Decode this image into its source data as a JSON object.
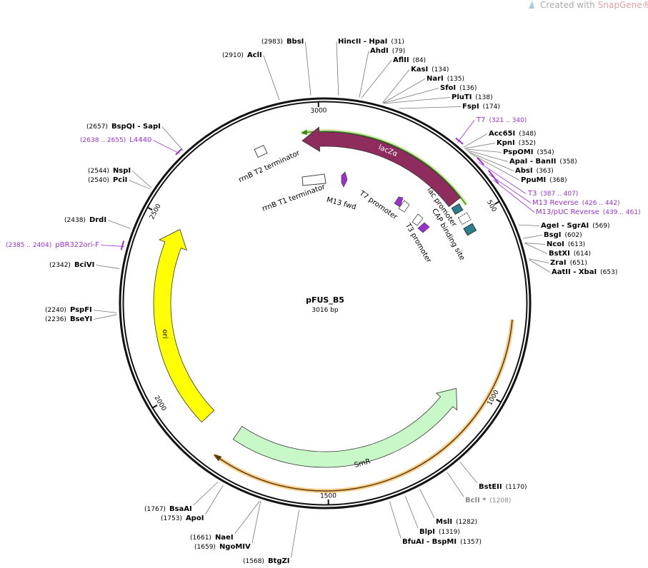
{
  "watermark": {
    "text": "Created with",
    "brand": "SnapGene®"
  },
  "plasmid": {
    "name": "pFUS_B5",
    "size": "3016 bp"
  },
  "ticks": [
    500,
    1000,
    1500,
    2000,
    2500,
    3000
  ],
  "sites": [
    {
      "name": "BbsI",
      "position": "(2983)"
    },
    {
      "name": "AclI",
      "position": "(2910)"
    },
    {
      "name": "BspQI - SapI",
      "position": "(2657)"
    },
    {
      "name": "NspI",
      "position": "(2544)"
    },
    {
      "name": "PciI",
      "position": "(2540)"
    },
    {
      "name": "DrdI",
      "position": "(2438)"
    },
    {
      "name": "BciVI",
      "position": "(2342)"
    },
    {
      "name": "PspFI",
      "position": "(2240)"
    },
    {
      "name": "BseYI",
      "position": "(2236)"
    },
    {
      "name": "BsaAI",
      "position": "(1767)"
    },
    {
      "name": "ApoI",
      "position": "(1753)"
    },
    {
      "name": "NaeI",
      "position": "(1661)"
    },
    {
      "name": "NgoMIV",
      "position": "(1659)"
    },
    {
      "name": "BtgZI",
      "position": "(1568)"
    },
    {
      "name": "HincII - HpaI",
      "position": "(31)"
    },
    {
      "name": "AhdI",
      "position": "(79)"
    },
    {
      "name": "AflII",
      "position": "(84)"
    },
    {
      "name": "KasI",
      "position": "(134)"
    },
    {
      "name": "NarI",
      "position": "(135)"
    },
    {
      "name": "SfoI",
      "position": "(136)"
    },
    {
      "name": "PluTI",
      "position": "(138)"
    },
    {
      "name": "FspI",
      "position": "(174)"
    },
    {
      "name": "Acc65I",
      "position": "(348)"
    },
    {
      "name": "KpnI",
      "position": "(352)"
    },
    {
      "name": "PspOMI",
      "position": "(354)"
    },
    {
      "name": "ApaI - BanII",
      "position": "(358)"
    },
    {
      "name": "AbsI",
      "position": "(363)"
    },
    {
      "name": "PpuMI",
      "position": "(368)"
    },
    {
      "name": "AgeI - SgrAI",
      "position": "(569)"
    },
    {
      "name": "BsgI",
      "position": "(602)"
    },
    {
      "name": "NcoI",
      "position": "(613)"
    },
    {
      "name": "BstXI",
      "position": "(614)"
    },
    {
      "name": "ZraI",
      "position": "(651)"
    },
    {
      "name": "AatII - XbaI",
      "position": "(653)"
    },
    {
      "name": "BstEII",
      "position": "(1170)"
    },
    {
      "name": "BclI *",
      "position": "(1208)",
      "color": "#888888"
    },
    {
      "name": "MslI",
      "position": "(1282)"
    },
    {
      "name": "BlpI",
      "position": "(1319)"
    },
    {
      "name": "BfuAI - BspMI",
      "position": "(1357)"
    }
  ],
  "primers": [
    {
      "name": "T7",
      "range": "(321 .. 340)"
    },
    {
      "name": "T3",
      "range": "(387 .. 407)"
    },
    {
      "name": "M13 Reverse",
      "range": "(426 .. 442)"
    },
    {
      "name": "M13/pUC Reverse",
      "range": "(439 .. 461)"
    },
    {
      "name": "L4440",
      "range": "(2638 .. 2655)"
    },
    {
      "name": "pBR322ori-F",
      "range": "(2385 .. 2404)"
    }
  ],
  "features": [
    "lacZα",
    "rrnB T2 terminator",
    "rrnB T1 terminator",
    "M13 fwd",
    "T7 promoter",
    "lac promoter",
    "CAP binding site",
    "T3 promoter",
    "ori",
    "SmR"
  ]
}
